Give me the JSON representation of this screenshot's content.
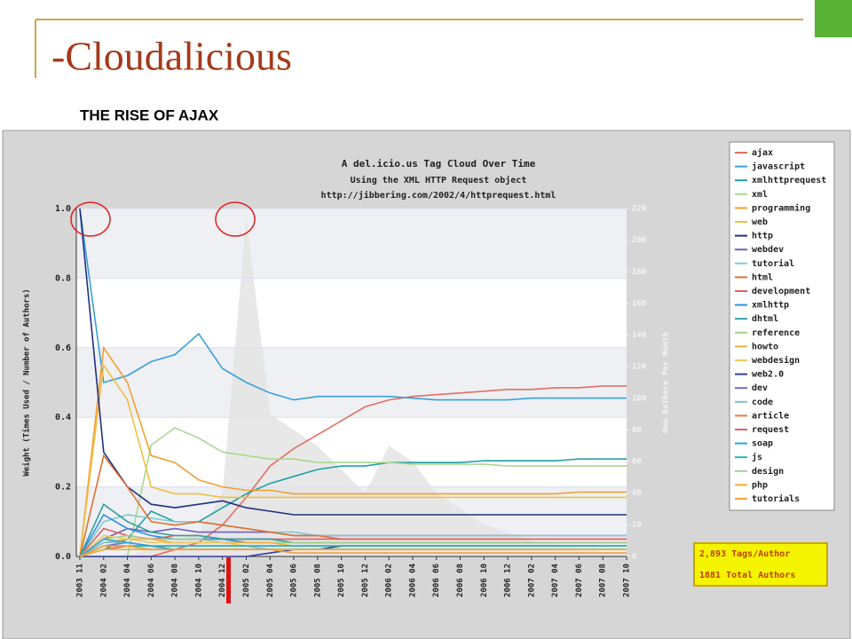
{
  "slide_title": "-Cloudalicious",
  "slide_subtitle": "THE RISE OF AJAX",
  "stats": [
    "2,893 Tags/Author",
    "1881 Total Authors"
  ],
  "chart_data": {
    "type": "line",
    "title": "A del.icio.us Tag Cloud Over Time",
    "subtitle": [
      "Using the XML HTTP Request object",
      "http://jibbering.com/2002/4/httprequest.html"
    ],
    "y_label": "Weight (Times Used / Number of Authors)",
    "y2_label": "New Authors Per Month",
    "categories": [
      "2003 11",
      "2004 02",
      "2004 04",
      "2004 06",
      "2004 08",
      "2004 10",
      "2004 12",
      "2005 02",
      "2005 04",
      "2005 06",
      "2005 08",
      "2005 10",
      "2005 12",
      "2006 02",
      "2006 04",
      "2006 06",
      "2006 08",
      "2006 10",
      "2006 12",
      "2007 02",
      "2007 04",
      "2007 06",
      "2007 08",
      "2007 10"
    ],
    "ylim": [
      0,
      1
    ],
    "yticks": [
      {
        "value": 0,
        "label": "0.0"
      },
      0.2,
      0.4,
      0.6,
      0.8,
      {
        "value": 1,
        "label": "1.0"
      }
    ],
    "y2lim": [
      0,
      220
    ],
    "y2ticks": [
      0,
      20,
      40,
      60,
      80,
      100,
      120,
      140,
      160,
      180,
      200,
      220
    ],
    "grid": true,
    "legend": "right",
    "area": {
      "axis": "y2",
      "color": "#e4e4e4",
      "values": [
        0,
        0,
        0,
        5,
        10,
        15,
        40,
        215,
        90,
        80,
        70,
        55,
        40,
        70,
        60,
        40,
        30,
        20,
        15,
        10,
        8,
        5,
        3,
        2
      ]
    },
    "series": [
      {
        "name": "ajax",
        "color": "#e07060",
        "values": [
          0,
          0,
          0,
          0,
          0.02,
          0.04,
          0.09,
          0.17,
          0.26,
          0.31,
          0.35,
          0.39,
          0.43,
          0.45,
          0.46,
          0.465,
          0.47,
          0.475,
          0.48,
          0.48,
          0.485,
          0.485,
          0.49,
          0.49
        ]
      },
      {
        "name": "javascript",
        "color": "#3aa0d8",
        "values": [
          1.0,
          0.5,
          0.52,
          0.56,
          0.58,
          0.64,
          0.54,
          0.5,
          0.47,
          0.45,
          0.46,
          0.46,
          0.46,
          0.46,
          0.455,
          0.45,
          0.45,
          0.45,
          0.45,
          0.455,
          0.455,
          0.455,
          0.455,
          0.455
        ]
      },
      {
        "name": "xmlhttprequest",
        "color": "#20a0a8",
        "values": [
          0,
          0.02,
          0.05,
          0.13,
          0.1,
          0.1,
          0.14,
          0.18,
          0.21,
          0.23,
          0.25,
          0.26,
          0.26,
          0.27,
          0.27,
          0.27,
          0.27,
          0.275,
          0.275,
          0.275,
          0.275,
          0.28,
          0.28,
          0.28
        ]
      },
      {
        "name": "xml",
        "color": "#a8d890",
        "values": [
          0,
          0,
          0,
          0.32,
          0.37,
          0.34,
          0.3,
          0.29,
          0.28,
          0.28,
          0.27,
          0.27,
          0.27,
          0.27,
          0.265,
          0.265,
          0.265,
          0.265,
          0.26,
          0.26,
          0.26,
          0.26,
          0.26,
          0.26
        ]
      },
      {
        "name": "programming",
        "color": "#f0a030",
        "values": [
          0,
          0.6,
          0.5,
          0.29,
          0.27,
          0.22,
          0.2,
          0.19,
          0.19,
          0.18,
          0.18,
          0.18,
          0.18,
          0.18,
          0.18,
          0.18,
          0.18,
          0.18,
          0.18,
          0.18,
          0.18,
          0.185,
          0.185,
          0.185
        ]
      },
      {
        "name": "web",
        "color": "#f0c040",
        "values": [
          0,
          0.55,
          0.45,
          0.2,
          0.18,
          0.18,
          0.17,
          0.17,
          0.17,
          0.17,
          0.17,
          0.17,
          0.17,
          0.17,
          0.17,
          0.17,
          0.17,
          0.17,
          0.17,
          0.17,
          0.17,
          0.17,
          0.17,
          0.17
        ]
      },
      {
        "name": "http",
        "color": "#203080",
        "values": [
          1.0,
          0.3,
          0.2,
          0.15,
          0.14,
          0.15,
          0.16,
          0.14,
          0.13,
          0.12,
          0.12,
          0.12,
          0.12,
          0.12,
          0.12,
          0.12,
          0.12,
          0.12,
          0.12,
          0.12,
          0.12,
          0.12,
          0.12,
          0.12
        ]
      },
      {
        "name": "webdev",
        "color": "#7060c0",
        "values": [
          0,
          0.05,
          0.08,
          0.07,
          0.08,
          0.07,
          0.07,
          0.07,
          0.07,
          0.06,
          0.06,
          0.06,
          0.06,
          0.06,
          0.06,
          0.06,
          0.06,
          0.06,
          0.06,
          0.06,
          0.06,
          0.06,
          0.06,
          0.06
        ]
      },
      {
        "name": "tutorial",
        "color": "#88c8c8",
        "values": [
          0,
          0.1,
          0.12,
          0.11,
          0.1,
          0.1,
          0.09,
          0.08,
          0.07,
          0.07,
          0.06,
          0.06,
          0.06,
          0.06,
          0.06,
          0.06,
          0.06,
          0.06,
          0.06,
          0.06,
          0.06,
          0.06,
          0.06,
          0.06
        ]
      },
      {
        "name": "html",
        "color": "#e07030",
        "values": [
          0,
          0.29,
          0.2,
          0.1,
          0.09,
          0.1,
          0.09,
          0.08,
          0.07,
          0.06,
          0.06,
          0.05,
          0.05,
          0.05,
          0.05,
          0.05,
          0.05,
          0.05,
          0.05,
          0.05,
          0.05,
          0.05,
          0.05,
          0.05
        ]
      },
      {
        "name": "development",
        "color": "#e06060",
        "values": [
          0,
          0.08,
          0.06,
          0.05,
          0.06,
          0.06,
          0.05,
          0.05,
          0.05,
          0.05,
          0.05,
          0.05,
          0.05,
          0.05,
          0.05,
          0.05,
          0.05,
          0.05,
          0.05,
          0.05,
          0.05,
          0.05,
          0.05,
          0.05
        ]
      },
      {
        "name": "xmlhttp",
        "color": "#3090e0",
        "values": [
          0,
          0.12,
          0.08,
          0.06,
          0.05,
          0.05,
          0.05,
          0.04,
          0.04,
          0.04,
          0.04,
          0.04,
          0.04,
          0.04,
          0.04,
          0.04,
          0.04,
          0.04,
          0.04,
          0.04,
          0.04,
          0.04,
          0.04,
          0.04
        ]
      },
      {
        "name": "dhtml",
        "color": "#30a0a0",
        "values": [
          0,
          0.15,
          0.1,
          0.07,
          0.06,
          0.06,
          0.05,
          0.05,
          0.05,
          0.04,
          0.04,
          0.04,
          0.04,
          0.04,
          0.04,
          0.04,
          0.04,
          0.04,
          0.04,
          0.04,
          0.04,
          0.04,
          0.04,
          0.04
        ]
      },
      {
        "name": "reference",
        "color": "#a0d090",
        "values": [
          0,
          0.05,
          0.06,
          0.05,
          0.05,
          0.05,
          0.04,
          0.04,
          0.04,
          0.04,
          0.04,
          0.04,
          0.04,
          0.04,
          0.04,
          0.04,
          0.04,
          0.04,
          0.04,
          0.04,
          0.04,
          0.04,
          0.04,
          0.04
        ]
      },
      {
        "name": "howto",
        "color": "#f0b040",
        "values": [
          0,
          0.04,
          0.05,
          0.05,
          0.04,
          0.04,
          0.04,
          0.04,
          0.04,
          0.03,
          0.03,
          0.03,
          0.03,
          0.03,
          0.03,
          0.03,
          0.03,
          0.03,
          0.03,
          0.03,
          0.03,
          0.03,
          0.03,
          0.03
        ]
      },
      {
        "name": "webdesign",
        "color": "#f0c860",
        "values": [
          0,
          0.06,
          0.05,
          0.04,
          0.04,
          0.04,
          0.04,
          0.03,
          0.03,
          0.03,
          0.03,
          0.03,
          0.03,
          0.03,
          0.03,
          0.03,
          0.03,
          0.03,
          0.03,
          0.03,
          0.03,
          0.03,
          0.03,
          0.03
        ]
      },
      {
        "name": "web2.0",
        "color": "#3040a0",
        "values": [
          0,
          0,
          0,
          0,
          0,
          0,
          0,
          0,
          0.01,
          0.02,
          0.02,
          0.03,
          0.03,
          0.03,
          0.03,
          0.03,
          0.03,
          0.03,
          0.03,
          0.03,
          0.03,
          0.03,
          0.03,
          0.03
        ]
      },
      {
        "name": "dev",
        "color": "#7070c0",
        "values": [
          0,
          0.03,
          0.04,
          0.03,
          0.03,
          0.03,
          0.03,
          0.03,
          0.03,
          0.03,
          0.03,
          0.03,
          0.03,
          0.03,
          0.03,
          0.03,
          0.03,
          0.03,
          0.03,
          0.03,
          0.03,
          0.03,
          0.03,
          0.03
        ]
      },
      {
        "name": "code",
        "color": "#80c0d0",
        "values": [
          0,
          0.04,
          0.04,
          0.03,
          0.03,
          0.03,
          0.03,
          0.03,
          0.02,
          0.02,
          0.02,
          0.02,
          0.02,
          0.02,
          0.02,
          0.02,
          0.02,
          0.02,
          0.02,
          0.02,
          0.02,
          0.02,
          0.02,
          0.02
        ]
      },
      {
        "name": "article",
        "color": "#e08040",
        "values": [
          0,
          0.03,
          0.03,
          0.02,
          0.02,
          0.02,
          0.02,
          0.02,
          0.02,
          0.02,
          0.02,
          0.02,
          0.02,
          0.02,
          0.02,
          0.02,
          0.02,
          0.02,
          0.02,
          0.02,
          0.02,
          0.02,
          0.02,
          0.02
        ]
      },
      {
        "name": "request",
        "color": "#e06070",
        "values": [
          0,
          0.02,
          0.03,
          0.03,
          0.02,
          0.02,
          0.02,
          0.02,
          0.02,
          0.02,
          0.02,
          0.02,
          0.02,
          0.02,
          0.02,
          0.02,
          0.02,
          0.02,
          0.02,
          0.02,
          0.02,
          0.02,
          0.02,
          0.02
        ]
      },
      {
        "name": "soap",
        "color": "#30a0e0",
        "values": [
          0,
          0.05,
          0.04,
          0.03,
          0.02,
          0.02,
          0.02,
          0.02,
          0.02,
          0.02,
          0.02,
          0.02,
          0.02,
          0.02,
          0.02,
          0.02,
          0.02,
          0.02,
          0.02,
          0.02,
          0.02,
          0.02,
          0.02,
          0.02
        ]
      },
      {
        "name": "js",
        "color": "#30b0b0",
        "values": [
          0,
          0.03,
          0.03,
          0.03,
          0.03,
          0.03,
          0.03,
          0.03,
          0.03,
          0.03,
          0.03,
          0.03,
          0.03,
          0.03,
          0.03,
          0.03,
          0.03,
          0.03,
          0.03,
          0.03,
          0.03,
          0.03,
          0.03,
          0.03
        ]
      },
      {
        "name": "design",
        "color": "#a0d0a0",
        "values": [
          0,
          0.02,
          0.02,
          0.02,
          0.02,
          0.02,
          0.02,
          0.02,
          0.02,
          0.02,
          0.02,
          0.02,
          0.02,
          0.02,
          0.02,
          0.02,
          0.02,
          0.02,
          0.02,
          0.02,
          0.02,
          0.02,
          0.02,
          0.02
        ]
      },
      {
        "name": "php",
        "color": "#f0b030",
        "values": [
          0,
          0.02,
          0.02,
          0.02,
          0.02,
          0.02,
          0.02,
          0.02,
          0.02,
          0.02,
          0.02,
          0.02,
          0.02,
          0.02,
          0.02,
          0.02,
          0.02,
          0.02,
          0.02,
          0.02,
          0.02,
          0.02,
          0.02,
          0.02
        ]
      },
      {
        "name": "tutorials",
        "color": "#f0a040",
        "values": [
          0,
          0.03,
          0.03,
          0.02,
          0.02,
          0.02,
          0.02,
          0.02,
          0.02,
          0.01,
          0.01,
          0.01,
          0.01,
          0.01,
          0.01,
          0.01,
          0.01,
          0.01,
          0.01,
          0.01,
          0.01,
          0.01,
          0.01,
          0.01
        ]
      }
    ]
  }
}
